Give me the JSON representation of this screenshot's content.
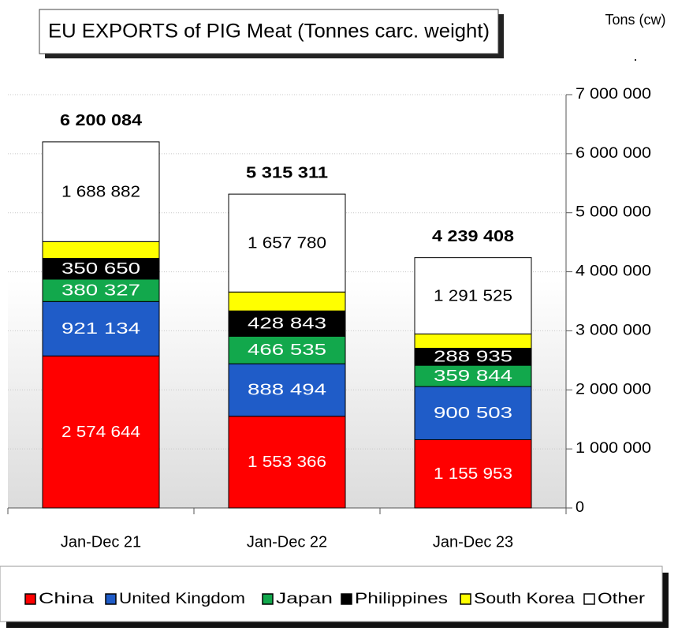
{
  "chart_data": {
    "type": "stacked_bar",
    "title": "EU EXPORTS of PIG Meat (Tonnes carc. weight)",
    "unit_label": "Tons (cw)",
    "unit_note": ".",
    "categories": [
      "Jan-Dec 21",
      "Jan-Dec 22",
      "Jan-Dec 23"
    ],
    "series": [
      {
        "name": "China",
        "color": "#ff0000",
        "values": [
          2574644,
          1553366,
          1155953
        ],
        "value_labels": [
          "2 574 644",
          "1 553 366",
          "1 155 953"
        ]
      },
      {
        "name": "United Kingdom",
        "color": "#1f5cc8",
        "values": [
          921134,
          888494,
          900503
        ],
        "value_labels": [
          "921 134",
          "888 494",
          "900 503"
        ]
      },
      {
        "name": "Japan",
        "color": "#12a84c",
        "values": [
          380327,
          466535,
          359844
        ],
        "value_labels": [
          "380 327",
          "466 535",
          "359 844"
        ]
      },
      {
        "name": "Philippines",
        "color": "#000000",
        "values": [
          350650,
          428843,
          288935
        ],
        "value_labels": [
          "350 650",
          "428 843",
          "288 935"
        ]
      },
      {
        "name": "South Korea",
        "color": "#ffff00",
        "values": [
          284447,
          320293,
          242648
        ]
      },
      {
        "name": "Other",
        "color": "#ffffff",
        "values": [
          1688882,
          1657780,
          1291525
        ],
        "value_labels": [
          "1 688 882",
          "1 657 780",
          "1 291 525"
        ]
      }
    ],
    "totals": [
      6200084,
      5315311,
      4239408
    ],
    "total_labels": [
      "6 200 084",
      "5 315 311",
      "4 239 408"
    ],
    "ylim": [
      0,
      7000000
    ],
    "yticks": [
      0,
      {
        "value": 1000000,
        "label": "1 000 000"
      },
      {
        "value": 2000000,
        "label": "2 000 000"
      },
      {
        "value": 3000000,
        "label": "3 000 000"
      },
      {
        "value": 4000000,
        "label": "4 000 000"
      },
      {
        "value": 5000000,
        "label": "5 000 000"
      },
      {
        "value": 6000000,
        "label": "6 000 000"
      },
      {
        "value": 7000000,
        "label": "7 000 000"
      }
    ],
    "y_axis_side": "right",
    "grid": true,
    "legend": "bottom"
  }
}
